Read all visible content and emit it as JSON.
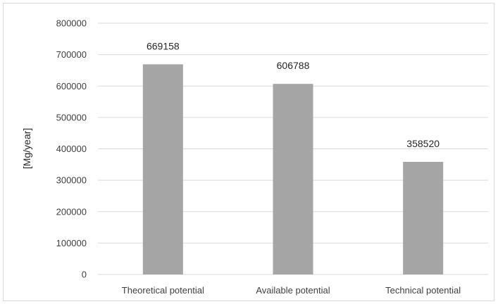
{
  "chart_data": {
    "type": "bar",
    "categories": [
      "Theoretical potential",
      "Available potential",
      "Technical potential"
    ],
    "values": [
      669158,
      606788,
      358520
    ],
    "data_labels": [
      "669158",
      "606788",
      "358520"
    ],
    "title": "",
    "xlabel": "",
    "ylabel": "[Mg/year]",
    "ylim": [
      0,
      800000
    ],
    "yticks": [
      0,
      100000,
      200000,
      300000,
      400000,
      500000,
      600000,
      700000,
      800000
    ],
    "ytick_labels": [
      "0",
      "100000",
      "200000",
      "300000",
      "400000",
      "500000",
      "600000",
      "700000",
      "800000"
    ],
    "grid": true,
    "legend": "none",
    "bar_color": "#a5a5a5",
    "grid_color": "#d9d9d9"
  }
}
